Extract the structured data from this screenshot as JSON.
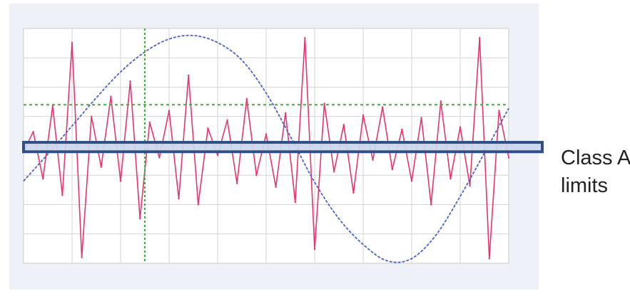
{
  "colors": {
    "panel_background": "#eef2f8",
    "plot_background": "#ffffff",
    "grid": "#c8c8c8",
    "signal": "#e8336e",
    "fundamental": "#4b63c8",
    "threshold_dotted": "#44aa44",
    "limit_band_fill": "#c9d7ee",
    "limit_band_stroke": "#2f4f86"
  },
  "chart_data": {
    "type": "line",
    "title": "",
    "xlabel": "",
    "ylabel": "",
    "grid": true,
    "xlim": [
      0,
      10
    ],
    "ylim": [
      -1,
      1
    ],
    "series": [
      {
        "name": "",
        "style": "dashed",
        "x": [
          0.0,
          0.5,
          1.0,
          1.5,
          2.0,
          2.5,
          3.0,
          3.5,
          4.0,
          4.5,
          5.0,
          5.5,
          6.0,
          6.5,
          7.0,
          7.5,
          8.0,
          8.5,
          9.0,
          9.5,
          10.0
        ],
        "y": [
          -0.3,
          -0.07,
          0.17,
          0.41,
          0.63,
          0.8,
          0.91,
          0.94,
          0.88,
          0.73,
          0.45,
          0.08,
          -0.31,
          -0.62,
          -0.84,
          -0.98,
          -0.96,
          -0.76,
          -0.43,
          -0.06,
          0.32
        ]
      },
      {
        "name": "",
        "style": "noise",
        "x": [
          0.0,
          0.2,
          0.4,
          0.6,
          0.8,
          1.0,
          1.2,
          1.4,
          1.6,
          1.8,
          2.0,
          2.2,
          2.4,
          2.6,
          2.8,
          3.0,
          3.2,
          3.4,
          3.6,
          3.8,
          4.0,
          4.2,
          4.4,
          4.6,
          4.8,
          5.0,
          5.2,
          5.4,
          5.6,
          5.8,
          6.0,
          6.2,
          6.4,
          6.6,
          6.8,
          7.0,
          7.2,
          7.4,
          7.6,
          7.8,
          8.0,
          8.2,
          8.4,
          8.6,
          8.8,
          9.0,
          9.2,
          9.4,
          9.6,
          9.8,
          10.0
        ],
        "y": [
          -0.05,
          0.12,
          -0.28,
          0.34,
          -0.42,
          0.88,
          -0.95,
          0.25,
          -0.18,
          0.42,
          -0.3,
          0.55,
          -0.62,
          0.2,
          -0.1,
          0.3,
          -0.45,
          0.6,
          -0.5,
          0.15,
          -0.08,
          0.22,
          -0.32,
          0.4,
          -0.25,
          0.1,
          -0.35,
          0.28,
          -0.48,
          0.92,
          -0.88,
          0.36,
          -0.22,
          0.18,
          -0.4,
          0.26,
          -0.12,
          0.33,
          -0.2,
          0.14,
          -0.3,
          0.24,
          -0.5,
          0.38,
          -0.28,
          0.16,
          -0.34,
          0.92,
          -0.96,
          0.3,
          -0.1
        ]
      }
    ],
    "reference_lines": [
      {
        "orientation": "horizontal",
        "y": 0.35,
        "style": "dotted"
      },
      {
        "orientation": "vertical",
        "x": 2.5,
        "style": "dotted"
      }
    ],
    "bands": [
      {
        "y0": -0.05,
        "y1": 0.03,
        "label_lines": [
          "Class A",
          "limits"
        ]
      }
    ]
  }
}
